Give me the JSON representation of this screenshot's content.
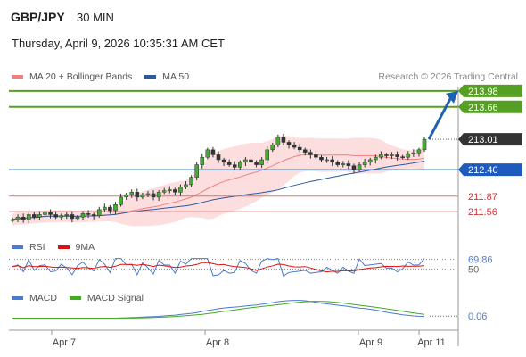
{
  "header": {
    "symbol": "GBP/JPY",
    "timeframe": "30 MIN",
    "timestamp": "Thursday, April 9, 2026 10:35:31 AM CET"
  },
  "legend": {
    "items": [
      {
        "label": "MA 20 + Bollinger Bands",
        "color": "#f08080"
      },
      {
        "label": "MA 50",
        "color": "#2c5aa0"
      }
    ],
    "credit": "Research © 2026 Trading Central"
  },
  "rsi_legend": [
    {
      "label": "RSI",
      "color": "#4a7bd0"
    },
    {
      "label": "9MA",
      "color": "#dd1111"
    }
  ],
  "macd_legend": [
    {
      "label": "MACD",
      "color": "#4a7bd0"
    },
    {
      "label": "MACD Signal",
      "color": "#44aa22"
    }
  ],
  "colors": {
    "green": "#55a022",
    "blue": "#1f5bbf",
    "red": "#e07070",
    "dark": "#333333",
    "arrow": "#2060b0"
  },
  "chart_data": {
    "type": "candlestick",
    "y_axis_visible_range": [
      211.15,
      214.05
    ],
    "x_ticks": [
      "Apr 7",
      "Apr 8",
      "Apr 9",
      "Apr 11"
    ],
    "levels": [
      {
        "value": 213.98,
        "label": "213.98",
        "style": "green-line",
        "label_style": "green-box"
      },
      {
        "value": 213.66,
        "label": "213.66",
        "style": "green-line",
        "label_style": "green-box"
      },
      {
        "value": 213.01,
        "label": "213.01",
        "style": "dotted",
        "label_style": "dark-box"
      },
      {
        "value": 212.4,
        "label": "212.40",
        "style": "blue-line",
        "label_style": "blue-box"
      },
      {
        "value": 211.87,
        "label": "211.87",
        "style": "red-line",
        "label_style": "red-text"
      },
      {
        "value": 211.56,
        "label": "211.56",
        "style": "red-line",
        "label_style": "red-text"
      }
    ],
    "closes": [
      211.4,
      211.45,
      211.4,
      211.5,
      211.45,
      211.5,
      211.55,
      211.5,
      211.45,
      211.48,
      211.5,
      211.42,
      211.45,
      211.52,
      211.5,
      211.48,
      211.6,
      211.65,
      211.58,
      211.7,
      211.85,
      211.9,
      211.95,
      211.85,
      211.9,
      211.92,
      211.85,
      211.95,
      211.98,
      212.0,
      211.95,
      212.05,
      212.1,
      212.25,
      212.5,
      212.65,
      212.8,
      212.7,
      212.6,
      212.55,
      212.5,
      212.45,
      212.55,
      212.6,
      212.55,
      212.5,
      212.6,
      212.8,
      212.9,
      213.05,
      212.95,
      212.9,
      212.85,
      212.8,
      212.75,
      212.7,
      212.65,
      212.6,
      212.6,
      212.55,
      212.5,
      212.52,
      212.48,
      212.4,
      212.5,
      212.55,
      212.6,
      212.65,
      212.7,
      212.68,
      212.7,
      212.66,
      212.65,
      212.72,
      212.74,
      212.8,
      213.01
    ],
    "indicators": [
      {
        "name": "RSI",
        "last_value": 69.86,
        "reference_level": 50,
        "reference_label": "50"
      },
      {
        "name": "MACD",
        "last_value": 0.06
      }
    ],
    "forecast_target": 213.98
  }
}
